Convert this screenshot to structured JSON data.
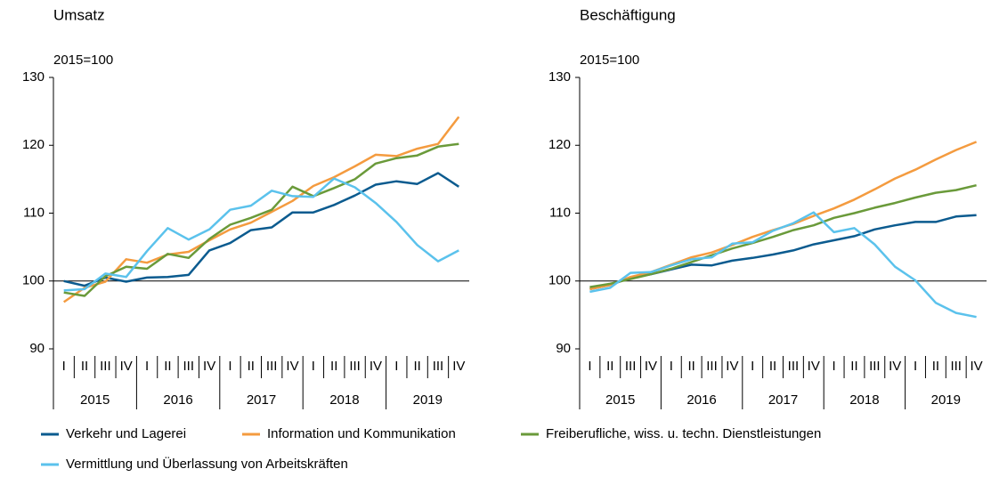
{
  "chart_data": [
    {
      "type": "line",
      "title": "Umsatz",
      "y_label": "2015=100",
      "categories": [
        "I",
        "II",
        "III",
        "IV",
        "I",
        "II",
        "III",
        "IV",
        "I",
        "II",
        "III",
        "IV",
        "I",
        "II",
        "III",
        "IV",
        "I",
        "II",
        "III",
        "IV"
      ],
      "years": [
        "2015",
        "2016",
        "2017",
        "2018",
        "2019"
      ],
      "ylim": [
        90,
        130
      ],
      "yticks": [
        90,
        100,
        110,
        120,
        130
      ],
      "reference_line": 100,
      "series": [
        {
          "name": "Verkehr und Lagerei",
          "color": "#0b5b8f",
          "values": [
            100,
            99.3,
            100.5,
            99.9,
            100.5,
            100.6,
            100.9,
            104.5,
            105.6,
            107.5,
            107.9,
            110.1,
            110.1,
            111.2,
            112.6,
            114.2,
            114.7,
            114.3,
            115.9,
            113.9
          ]
        },
        {
          "name": "Information und Kommunikation",
          "color": "#f49b3f",
          "values": [
            96.9,
            99,
            99.9,
            103.2,
            102.7,
            103.9,
            104.3,
            106,
            107.6,
            108.6,
            110.2,
            111.8,
            114,
            115.3,
            116.9,
            118.6,
            118.4,
            119.5,
            120.2,
            124.2
          ]
        },
        {
          "name": "Freiberufliche, wiss. u. techn. Dienstleistungen",
          "color": "#6a9a3a",
          "values": [
            98.3,
            97.8,
            100.7,
            102.1,
            101.8,
            104,
            103.4,
            106.2,
            108.3,
            109.3,
            110.5,
            113.9,
            112.5,
            113.7,
            115,
            117.3,
            118.1,
            118.5,
            119.8,
            120.2
          ]
        },
        {
          "name": "Vermittlung und Überlassung von Arbeitskräften",
          "color": "#5bc2ec",
          "values": [
            98.6,
            98.8,
            101.1,
            100.6,
            104.4,
            107.8,
            106.1,
            107.6,
            110.5,
            111.1,
            113.3,
            112.5,
            112.4,
            115.1,
            113.8,
            111.5,
            108.7,
            105.3,
            102.9,
            104.5
          ]
        }
      ]
    },
    {
      "type": "line",
      "title": "Beschäftigung",
      "y_label": "2015=100",
      "categories": [
        "I",
        "II",
        "III",
        "IV",
        "I",
        "II",
        "III",
        "IV",
        "I",
        "II",
        "III",
        "IV",
        "I",
        "II",
        "III",
        "IV",
        "I",
        "II",
        "III",
        "IV"
      ],
      "years": [
        "2015",
        "2016",
        "2017",
        "2018",
        "2019"
      ],
      "ylim": [
        90,
        130
      ],
      "yticks": [
        90,
        100,
        110,
        120,
        130
      ],
      "reference_line": 100,
      "series": [
        {
          "color": "#0b5b8f",
          "values": [
            98.8,
            99.4,
            100.5,
            101,
            101.7,
            102.4,
            102.3,
            103,
            103.4,
            103.9,
            104.5,
            105.4,
            106,
            106.6,
            107.6,
            108.2,
            108.7,
            108.7,
            109.5,
            109.7
          ]
        },
        {
          "color": "#f49b3f",
          "values": [
            98.8,
            99.4,
            100.6,
            101.3,
            102.4,
            103.5,
            104.2,
            105.3,
            106.5,
            107.5,
            108.4,
            109.6,
            110.7,
            112,
            113.5,
            115.1,
            116.4,
            117.9,
            119.3,
            120.5
          ]
        },
        {
          "color": "#6a9a3a",
          "values": [
            99.1,
            99.6,
            100.3,
            101,
            101.8,
            102.8,
            103.8,
            104.8,
            105.6,
            106.5,
            107.5,
            108.2,
            109.3,
            110,
            110.8,
            111.5,
            112.3,
            113,
            113.4,
            114.1
          ]
        },
        {
          "color": "#5bc2ec",
          "values": [
            98.4,
            99,
            101.2,
            101.3,
            102.3,
            103.2,
            103.5,
            105.5,
            105.7,
            107.4,
            108.5,
            110.1,
            107.2,
            107.8,
            105.4,
            102.1,
            100.1,
            96.8,
            95.3,
            94.7
          ]
        }
      ]
    }
  ]
}
